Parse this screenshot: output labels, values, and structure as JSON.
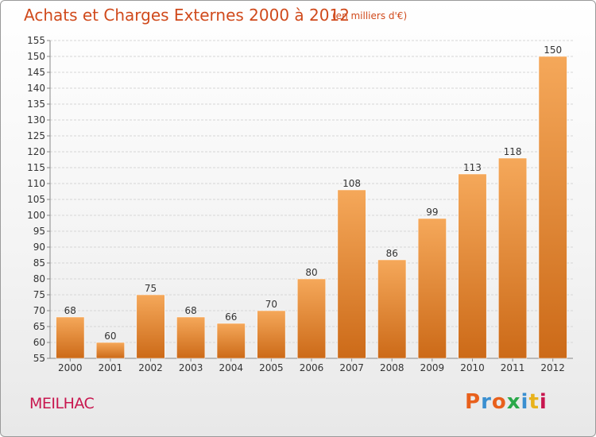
{
  "header": {
    "title": "Achats et Charges Externes 2000 à 2012",
    "subtitle": "(en milliers d'€)"
  },
  "footer": {
    "commune": "MEILHAC",
    "logo_text": "Proxiti"
  },
  "colors": {
    "title": "#d04a1c",
    "commune": "#c8174f",
    "bar_light": "#f5a85a",
    "bar_dark": "#cc6a18",
    "logo": [
      "#e8601c",
      "#3a8fd0",
      "#e8601c",
      "#2aa84a",
      "#3a8fd0",
      "#e8b21c",
      "#c8174f"
    ]
  },
  "chart_data": {
    "type": "bar",
    "categories": [
      "2000",
      "2001",
      "2002",
      "2003",
      "2004",
      "2005",
      "2006",
      "2007",
      "2008",
      "2009",
      "2010",
      "2011",
      "2012"
    ],
    "values": [
      68,
      60,
      75,
      68,
      66,
      70,
      80,
      108,
      86,
      99,
      113,
      118,
      150
    ],
    "data_labels": [
      "68",
      "60",
      "75",
      "68",
      "66",
      "70",
      "80",
      "108",
      "86",
      "99",
      "113",
      "118",
      "150"
    ],
    "ylim": [
      55,
      155
    ],
    "yticks": [
      55,
      60,
      65,
      70,
      75,
      80,
      85,
      90,
      95,
      100,
      105,
      110,
      115,
      120,
      125,
      130,
      135,
      140,
      145,
      150,
      155
    ],
    "grid": true,
    "legend": "none"
  }
}
